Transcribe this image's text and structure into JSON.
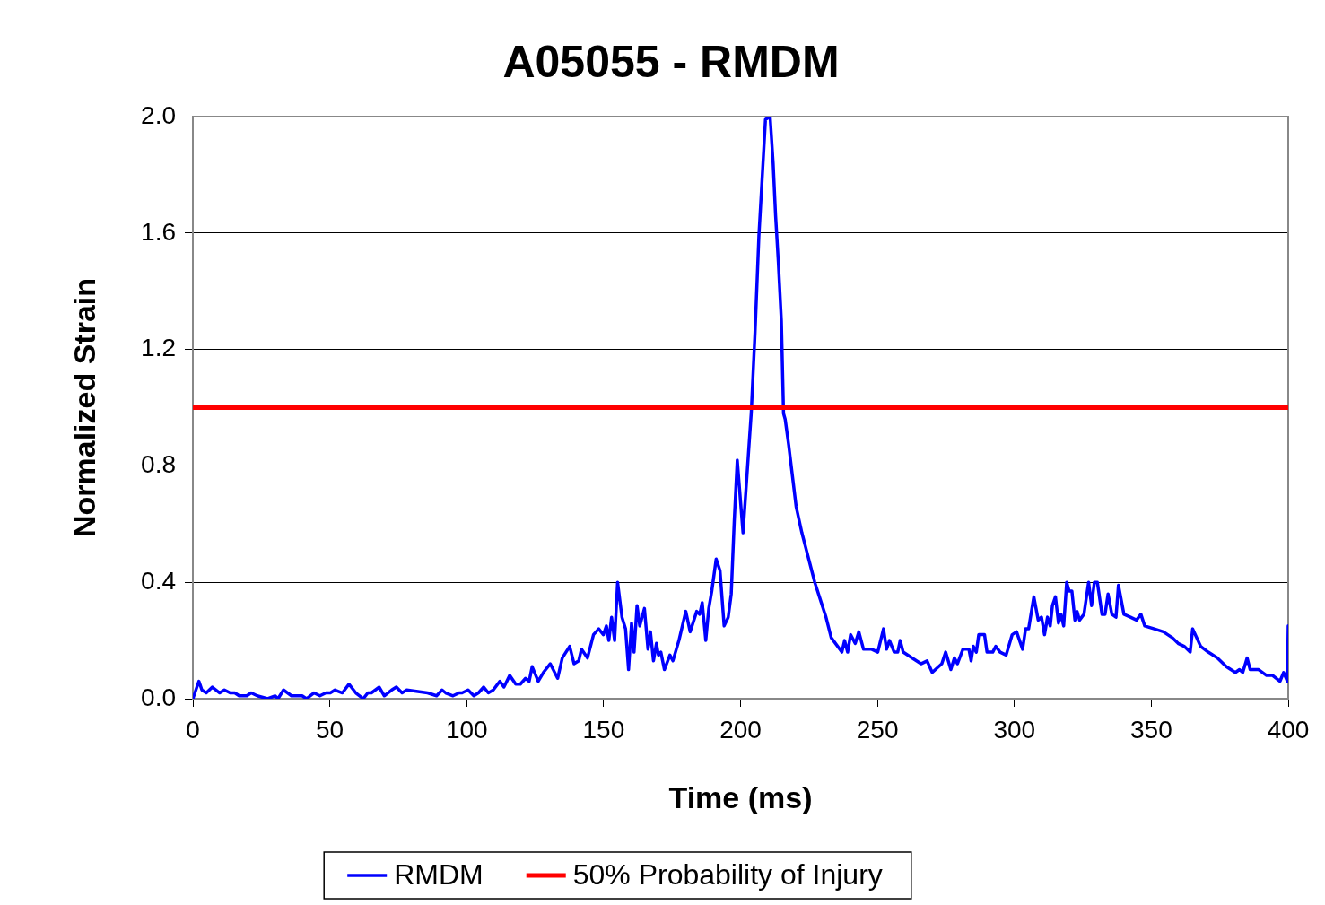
{
  "chart_data": {
    "type": "line",
    "title": "A05055 - RMDM",
    "xlabel": "Time (ms)",
    "ylabel": "Normalized Strain",
    "xlim": [
      0,
      400
    ],
    "xticks": [
      0,
      50,
      100,
      150,
      200,
      250,
      300,
      350,
      400
    ],
    "ylim": [
      0,
      2
    ],
    "yticks": [
      {
        "value": 0,
        "label": "0.0"
      },
      {
        "value": 0.4,
        "label": "0.4"
      },
      {
        "value": 0.8,
        "label": "0.8"
      },
      {
        "value": 1.2,
        "label": "1.2"
      },
      {
        "value": 1.6,
        "label": "1.6"
      },
      {
        "value": 2,
        "label": "2.0"
      }
    ],
    "grid": "y",
    "legend": "bottom",
    "marker": "none",
    "line_style": "solid",
    "series": [
      {
        "name": "RMDM",
        "color": "#0000ff",
        "x": [
          0,
          2.2,
          3.3,
          4.9,
          7.1,
          9.8,
          11.5,
          13.6,
          15.3,
          16.9,
          19.7,
          21.3,
          23.5,
          27.3,
          30,
          31.1,
          33.1,
          36,
          39.9,
          41.5,
          44.2,
          46.4,
          48.6,
          50.2,
          51.9,
          54.6,
          57,
          59.5,
          62.2,
          63.9,
          65.2,
          68,
          69.9,
          72.6,
          74.3,
          76.4,
          78.1,
          85.7,
          89,
          91,
          92.3,
          95,
          97.2,
          98.3,
          100.5,
          102.6,
          104.3,
          106.2,
          107.9,
          109.7,
          112.1,
          113.6,
          115.7,
          117.9,
          119.6,
          121.5,
          122.8,
          123.9,
          126.1,
          128,
          130.5,
          133.2,
          134.9,
          137.6,
          139.2,
          140.9,
          141.9,
          144.1,
          146.3,
          148.2,
          149.9,
          151,
          151.9,
          152.9,
          154,
          155.1,
          156.7,
          158,
          159.1,
          160.2,
          161.1,
          162.2,
          163.2,
          164.9,
          166.2,
          167.1,
          168.2,
          169.3,
          170,
          170.9,
          172.2,
          174.2,
          175.3,
          177.5,
          180,
          181.6,
          184,
          185.1,
          186,
          187.3,
          188.4,
          189.5,
          191.1,
          192.5,
          194,
          195.5,
          196.6,
          197.7,
          198.8,
          200.9,
          203.9,
          205.3,
          206.7,
          209.1,
          210.8,
          211.9,
          212.8,
          213.8,
          214.9,
          215.7,
          216.3,
          217.6,
          220.3,
          222.4,
          227.1,
          231.2,
          233.1,
          237,
          238,
          239.1,
          240.2,
          241.9,
          243.2,
          244.9,
          247.9,
          250.1,
          252.2,
          253.3,
          254.4,
          256.1,
          257.4,
          258.3,
          259.4,
          262.6,
          265.9,
          268.1,
          270,
          273.5,
          274.9,
          276.8,
          278.1,
          279.2,
          281.2,
          283.4,
          284.2,
          285,
          286.1,
          287,
          289.1,
          290,
          292.1,
          293.2,
          294.8,
          297,
          299.2,
          300.8,
          303,
          304.1,
          305.2,
          307.1,
          308.7,
          309.9,
          311,
          312.1,
          313.1,
          313.9,
          315,
          316.1,
          317,
          318,
          319.1,
          320,
          321,
          322.1,
          322.9,
          323.8,
          325.4,
          327.1,
          328.2,
          329.2,
          330.3,
          332,
          333.1,
          334.2,
          335.6,
          337.1,
          338,
          340,
          342.4,
          344.6,
          346.2,
          347.6,
          351.1,
          354.4,
          357.6,
          359.8,
          362,
          364.2,
          365.1,
          368,
          370.8,
          374.1,
          377.4,
          380.7,
          382.2,
          383.4,
          385,
          386.1,
          389.2,
          392.1,
          394.3,
          397,
          398.3,
          399.7,
          400
        ],
        "values": [
          0,
          0.06,
          0.03,
          0.02,
          0.04,
          0.02,
          0.03,
          0.02,
          0.02,
          0.01,
          0.01,
          0.02,
          0.01,
          0,
          0.01,
          0,
          0.03,
          0.01,
          0.01,
          0,
          0.02,
          0.01,
          0.02,
          0.02,
          0.03,
          0.02,
          0.05,
          0.02,
          0,
          0.02,
          0.02,
          0.04,
          0.01,
          0.03,
          0.04,
          0.02,
          0.03,
          0.02,
          0.01,
          0.03,
          0.02,
          0.01,
          0.02,
          0.02,
          0.03,
          0.01,
          0.02,
          0.04,
          0.02,
          0.03,
          0.06,
          0.04,
          0.08,
          0.05,
          0.05,
          0.07,
          0.06,
          0.11,
          0.06,
          0.09,
          0.12,
          0.07,
          0.14,
          0.18,
          0.12,
          0.13,
          0.17,
          0.14,
          0.22,
          0.24,
          0.22,
          0.25,
          0.2,
          0.28,
          0.2,
          0.4,
          0.28,
          0.24,
          0.1,
          0.26,
          0.16,
          0.32,
          0.25,
          0.31,
          0.17,
          0.23,
          0.13,
          0.19,
          0.15,
          0.16,
          0.1,
          0.15,
          0.13,
          0.2,
          0.3,
          0.23,
          0.3,
          0.29,
          0.33,
          0.2,
          0.31,
          0.37,
          0.48,
          0.44,
          0.25,
          0.28,
          0.36,
          0.61,
          0.82,
          0.57,
          0.98,
          1.26,
          1.59,
          1.99,
          2,
          1.84,
          1.66,
          1.5,
          1.3,
          0.98,
          0.96,
          0.87,
          0.66,
          0.57,
          0.4,
          0.28,
          0.21,
          0.16,
          0.2,
          0.16,
          0.22,
          0.19,
          0.23,
          0.17,
          0.17,
          0.16,
          0.24,
          0.17,
          0.2,
          0.16,
          0.16,
          0.2,
          0.16,
          0.14,
          0.12,
          0.13,
          0.09,
          0.12,
          0.16,
          0.1,
          0.14,
          0.12,
          0.17,
          0.17,
          0.13,
          0.18,
          0.16,
          0.22,
          0.22,
          0.16,
          0.16,
          0.18,
          0.16,
          0.15,
          0.22,
          0.23,
          0.17,
          0.24,
          0.24,
          0.35,
          0.27,
          0.28,
          0.22,
          0.28,
          0.25,
          0.32,
          0.35,
          0.26,
          0.29,
          0.25,
          0.4,
          0.37,
          0.37,
          0.27,
          0.3,
          0.27,
          0.29,
          0.4,
          0.32,
          0.4,
          0.4,
          0.29,
          0.29,
          0.36,
          0.29,
          0.28,
          0.39,
          0.29,
          0.28,
          0.27,
          0.29,
          0.25,
          0.24,
          0.23,
          0.21,
          0.19,
          0.18,
          0.16,
          0.24,
          0.18,
          0.16,
          0.14,
          0.11,
          0.09,
          0.1,
          0.09,
          0.14,
          0.1,
          0.1,
          0.08,
          0.08,
          0.06,
          0.09,
          0.06,
          0.25
        ]
      }
    ],
    "ref_lines": [
      {
        "axis": "y",
        "value": 1,
        "label": "50% Probability of Injury",
        "color": "#ff0000"
      }
    ]
  }
}
